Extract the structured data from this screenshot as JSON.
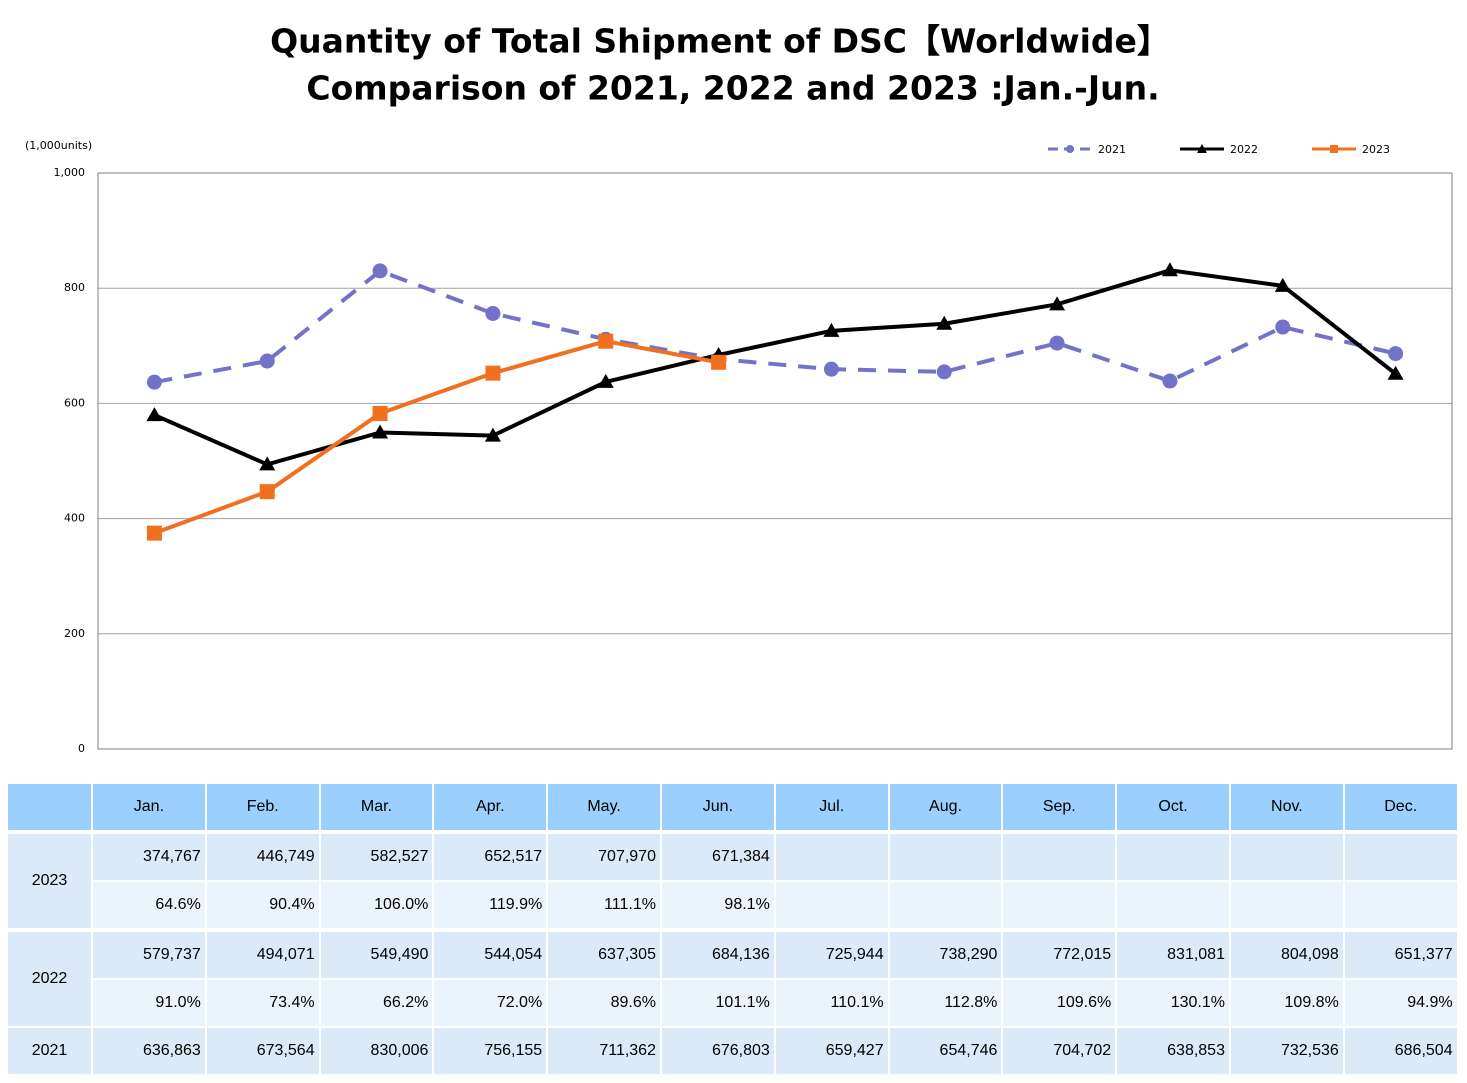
{
  "chart_data": {
    "type": "line",
    "title": "Quantity of Total Shipment of DSC【Worldwide】",
    "subtitle": "Comparison of 2021, 2022 and 2023 :Jan.-Jun.",
    "y_label": "(1,000units)",
    "categories": [
      "Jan.",
      "Feb.",
      "Mar.",
      "Apr.",
      "May.",
      "Jun.",
      "Jul.",
      "Aug.",
      "Sep.",
      "Oct.",
      "Nov.",
      "Dec."
    ],
    "ylim": [
      0,
      1000
    ],
    "yticks": [
      0,
      200,
      400,
      600,
      800,
      {
        "value": 1000,
        "label": "1,000"
      }
    ],
    "grid": true,
    "legend": "top-right",
    "series": [
      {
        "name": "2021",
        "color": "#7272c9",
        "dash": true,
        "marker": "circle",
        "values": [
          636.863,
          673.564,
          830.006,
          756.155,
          711.362,
          676.803,
          659.427,
          654.746,
          704.702,
          638.853,
          732.536,
          686.504
        ],
        "value_labels": [
          "636,863",
          "673,564",
          "830,006",
          "756,155",
          "711,362",
          "676,803",
          "659,427",
          "654,746",
          "704,702",
          "638,853",
          "732,536",
          "686,504"
        ]
      },
      {
        "name": "2022",
        "color": "#000000",
        "dash": false,
        "marker": "triangle",
        "values": [
          579.737,
          494.071,
          549.49,
          544.054,
          637.305,
          684.136,
          725.944,
          738.29,
          772.015,
          831.081,
          804.098,
          651.377
        ],
        "value_labels": [
          "579,737",
          "494,071",
          "549,490",
          "544,054",
          "637,305",
          "684,136",
          "725,944",
          "738,290",
          "772,015",
          "831,081",
          "804,098",
          "651,377"
        ],
        "ratios": [
          "91.0%",
          "73.4%",
          "66.2%",
          "72.0%",
          "89.6%",
          "101.1%",
          "110.1%",
          "112.8%",
          "109.6%",
          "130.1%",
          "109.8%",
          "94.9%"
        ]
      },
      {
        "name": "2023",
        "color": "#f07020",
        "dash": false,
        "marker": "square",
        "values": [
          374.767,
          446.749,
          582.527,
          652.517,
          707.97,
          671.384,
          null,
          null,
          null,
          null,
          null,
          null
        ],
        "value_labels": [
          "374,767",
          "446,749",
          "582,527",
          "652,517",
          "707,970",
          "671,384",
          null,
          null,
          null,
          null,
          null,
          null
        ],
        "ratios": [
          "64.6%",
          "90.4%",
          "106.0%",
          "119.9%",
          "111.1%",
          "98.1%",
          null,
          null,
          null,
          null,
          null,
          null
        ]
      }
    ]
  }
}
